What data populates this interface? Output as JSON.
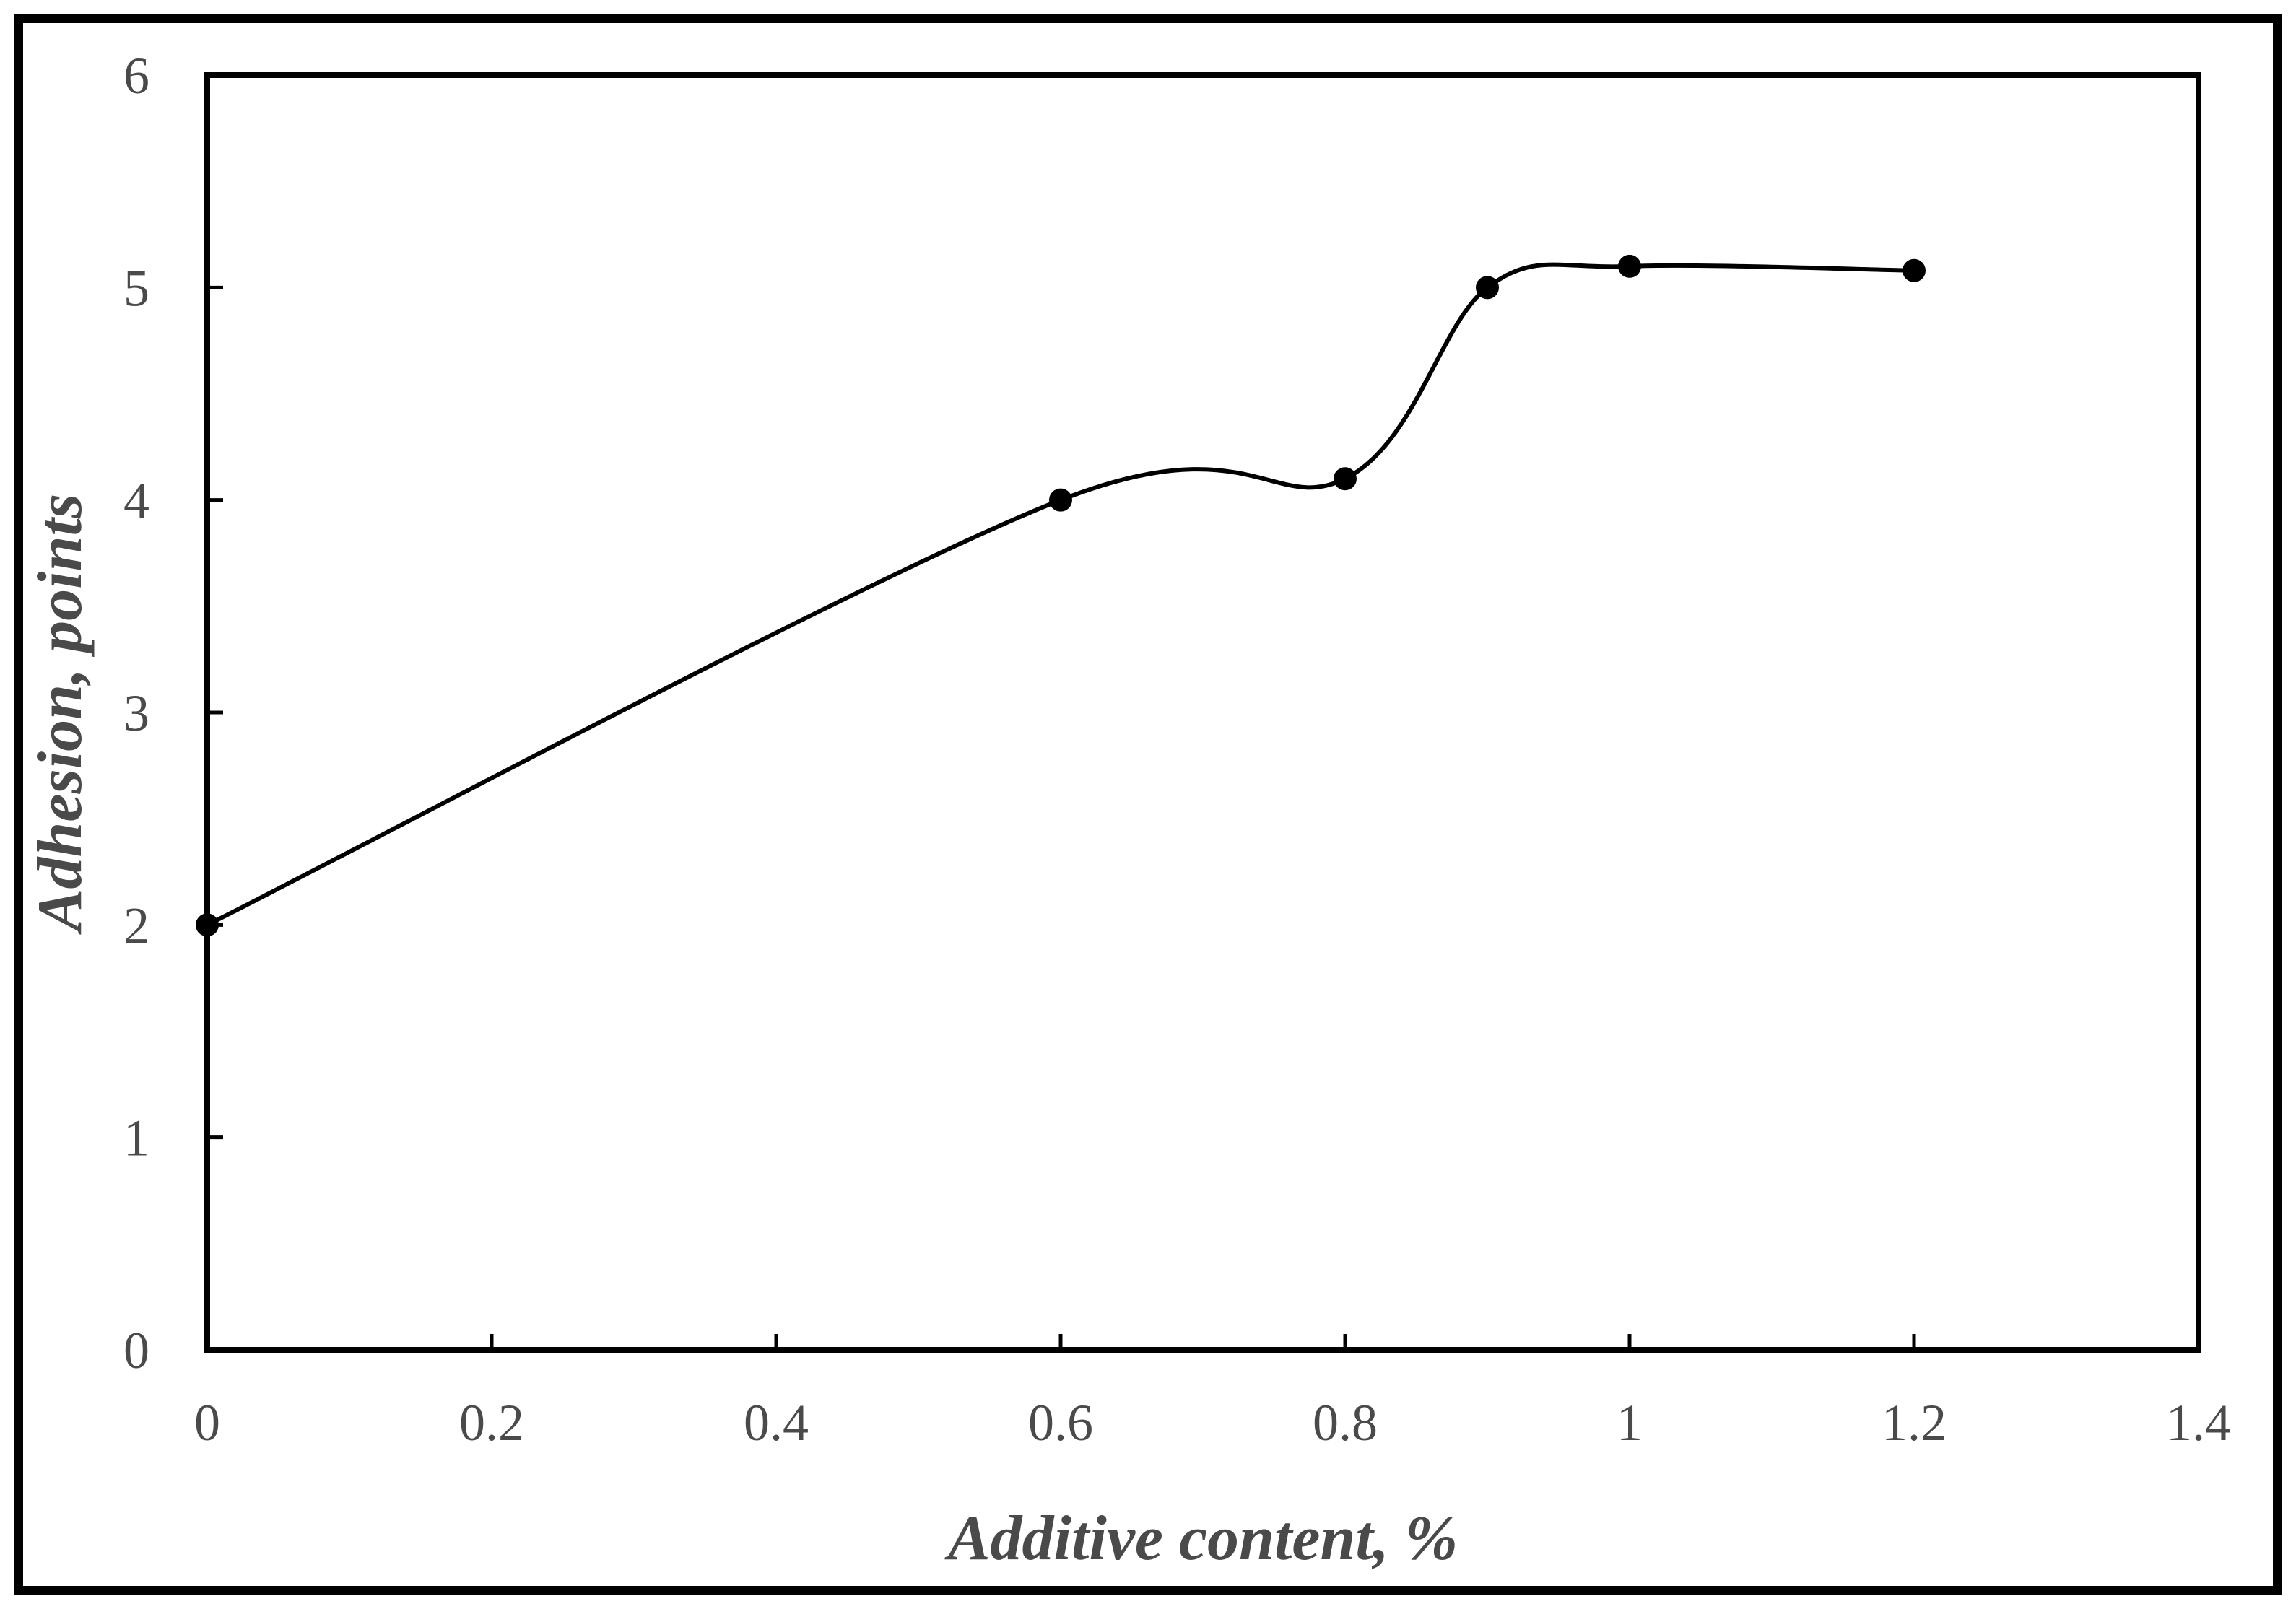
{
  "chart_data": {
    "type": "line",
    "title": "",
    "xlabel": "Additive content, %",
    "ylabel": "Adhesion, points",
    "xlim": [
      0,
      1.4
    ],
    "ylim": [
      0,
      6
    ],
    "x_ticks": [
      "0",
      "0.2",
      "0.4",
      "0.6",
      "0.8",
      "1",
      "1.2",
      "1.4"
    ],
    "y_ticks": [
      "0",
      "1",
      "2",
      "3",
      "4",
      "5",
      "6"
    ],
    "grid": false,
    "legend": "none",
    "smoothed": true,
    "series": [
      {
        "x": [
          0,
          0.6,
          0.8,
          0.9,
          1.0,
          1.2
        ],
        "y": [
          2.0,
          4.0,
          4.1,
          5.0,
          5.1,
          5.08
        ],
        "color": "#000000",
        "marker": "circle"
      }
    ]
  }
}
